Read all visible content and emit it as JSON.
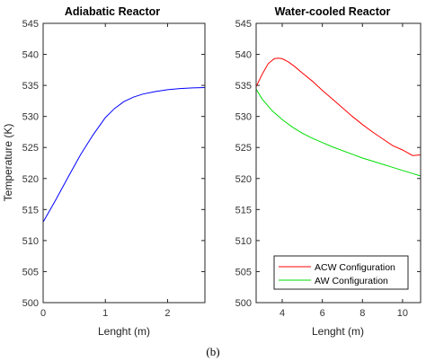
{
  "caption": "(b)",
  "chart_data": [
    {
      "type": "line",
      "title": "Adiabatic Reactor",
      "xlabel": "Lenght (m)",
      "ylabel": "Temperature (K)",
      "xlim": [
        0,
        2.6
      ],
      "ylim": [
        500,
        545
      ],
      "xticks": [
        0,
        1,
        2
      ],
      "xtick_labels": [
        "0",
        "1",
        "2"
      ],
      "yticks": [
        500,
        505,
        510,
        515,
        520,
        525,
        530,
        535,
        540,
        545
      ],
      "ytick_labels": [
        "500",
        "505",
        "510",
        "515",
        "520",
        "525",
        "530",
        "535",
        "540",
        "545"
      ],
      "grid": false,
      "colors": {
        "series": "#0000ff"
      },
      "series": [
        {
          "x": [
            0,
            0.2,
            0.4,
            0.6,
            0.8,
            1.0,
            1.15,
            1.3,
            1.45,
            1.6,
            1.8,
            2.0,
            2.2,
            2.4,
            2.6
          ],
          "y": [
            513,
            516.5,
            520.2,
            523.8,
            527.0,
            529.8,
            531.3,
            532.4,
            533.1,
            533.6,
            534.0,
            534.3,
            534.5,
            534.6,
            534.65
          ]
        }
      ]
    },
    {
      "type": "line",
      "title": "Water-cooled Reactor",
      "xlabel": "Lenght (m)",
      "ylabel": "",
      "xlim": [
        2.7,
        10.9
      ],
      "ylim": [
        500,
        545
      ],
      "xticks": [
        4,
        6,
        8,
        10
      ],
      "xtick_labels": [
        "4",
        "6",
        "8",
        "10"
      ],
      "yticks": [
        500,
        505,
        510,
        515,
        520,
        525,
        530,
        535,
        540,
        545
      ],
      "ytick_labels": [
        "500",
        "505",
        "510",
        "515",
        "520",
        "525",
        "530",
        "535",
        "540",
        "545"
      ],
      "grid": false,
      "legend": "bottom-right",
      "series": [
        {
          "name": "ACW Configuration",
          "color": "#ff0000",
          "x": [
            2.7,
            3.0,
            3.3,
            3.6,
            3.8,
            4.0,
            4.3,
            4.6,
            5.0,
            5.5,
            6.0,
            6.5,
            7.0,
            7.5,
            8.0,
            8.5,
            9.0,
            9.5,
            10.0,
            10.5,
            10.9
          ],
          "y": [
            534.8,
            536.8,
            538.5,
            539.3,
            539.4,
            539.3,
            538.8,
            538.1,
            537.0,
            535.7,
            534.2,
            532.8,
            531.4,
            530.0,
            528.7,
            527.5,
            526.4,
            525.3,
            524.6,
            523.7,
            523.8
          ]
        },
        {
          "name": "AW Configuration",
          "color": "#00dd00",
          "x": [
            2.7,
            3.0,
            3.5,
            4.0,
            4.5,
            5.0,
            5.5,
            6.0,
            6.5,
            7.0,
            7.5,
            8.0,
            8.5,
            9.0,
            9.5,
            10.0,
            10.5,
            10.9
          ],
          "y": [
            534.4,
            532.8,
            530.9,
            529.5,
            528.3,
            527.3,
            526.5,
            525.8,
            525.1,
            524.5,
            523.9,
            523.3,
            522.8,
            522.3,
            521.8,
            521.3,
            520.8,
            520.4
          ]
        }
      ]
    }
  ]
}
